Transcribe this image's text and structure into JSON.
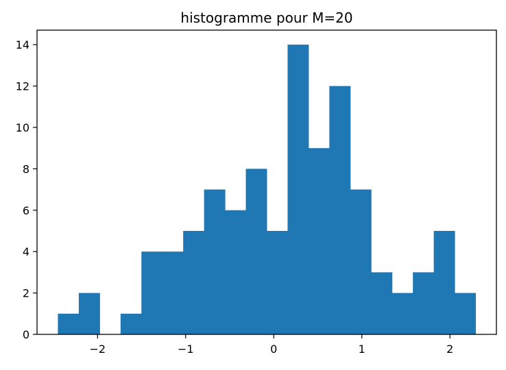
{
  "chart_data": {
    "type": "bar",
    "title": "histogramme pour M=20",
    "xlabel": "",
    "ylabel": "",
    "bins": 20,
    "bin_edges": [
      -2.45,
      -2.213,
      -1.976,
      -1.739,
      -1.502,
      -1.265,
      -1.028,
      -0.791,
      -0.554,
      -0.317,
      -0.08,
      0.157,
      0.394,
      0.631,
      0.868,
      1.105,
      1.342,
      1.579,
      1.816,
      2.053,
      2.29
    ],
    "values": [
      1,
      2,
      0,
      1,
      4,
      4,
      5,
      7,
      6,
      8,
      5,
      14,
      9,
      12,
      7,
      3,
      2,
      3,
      5,
      2
    ],
    "xlim": [
      -2.687,
      2.527
    ],
    "ylim": [
      0,
      14.7
    ],
    "x_ticks": [
      -2,
      -1,
      0,
      1,
      2
    ],
    "x_tick_labels": [
      "−2",
      "−1",
      "0",
      "1",
      "2"
    ],
    "y_ticks": [
      0,
      2,
      4,
      6,
      8,
      10,
      12,
      14
    ],
    "y_tick_labels": [
      "0",
      "2",
      "4",
      "6",
      "8",
      "10",
      "12",
      "14"
    ],
    "grid": false,
    "legend": "none",
    "colors": {
      "bar": "#1f77b4",
      "axis": "#000000",
      "background": "#ffffff"
    }
  }
}
